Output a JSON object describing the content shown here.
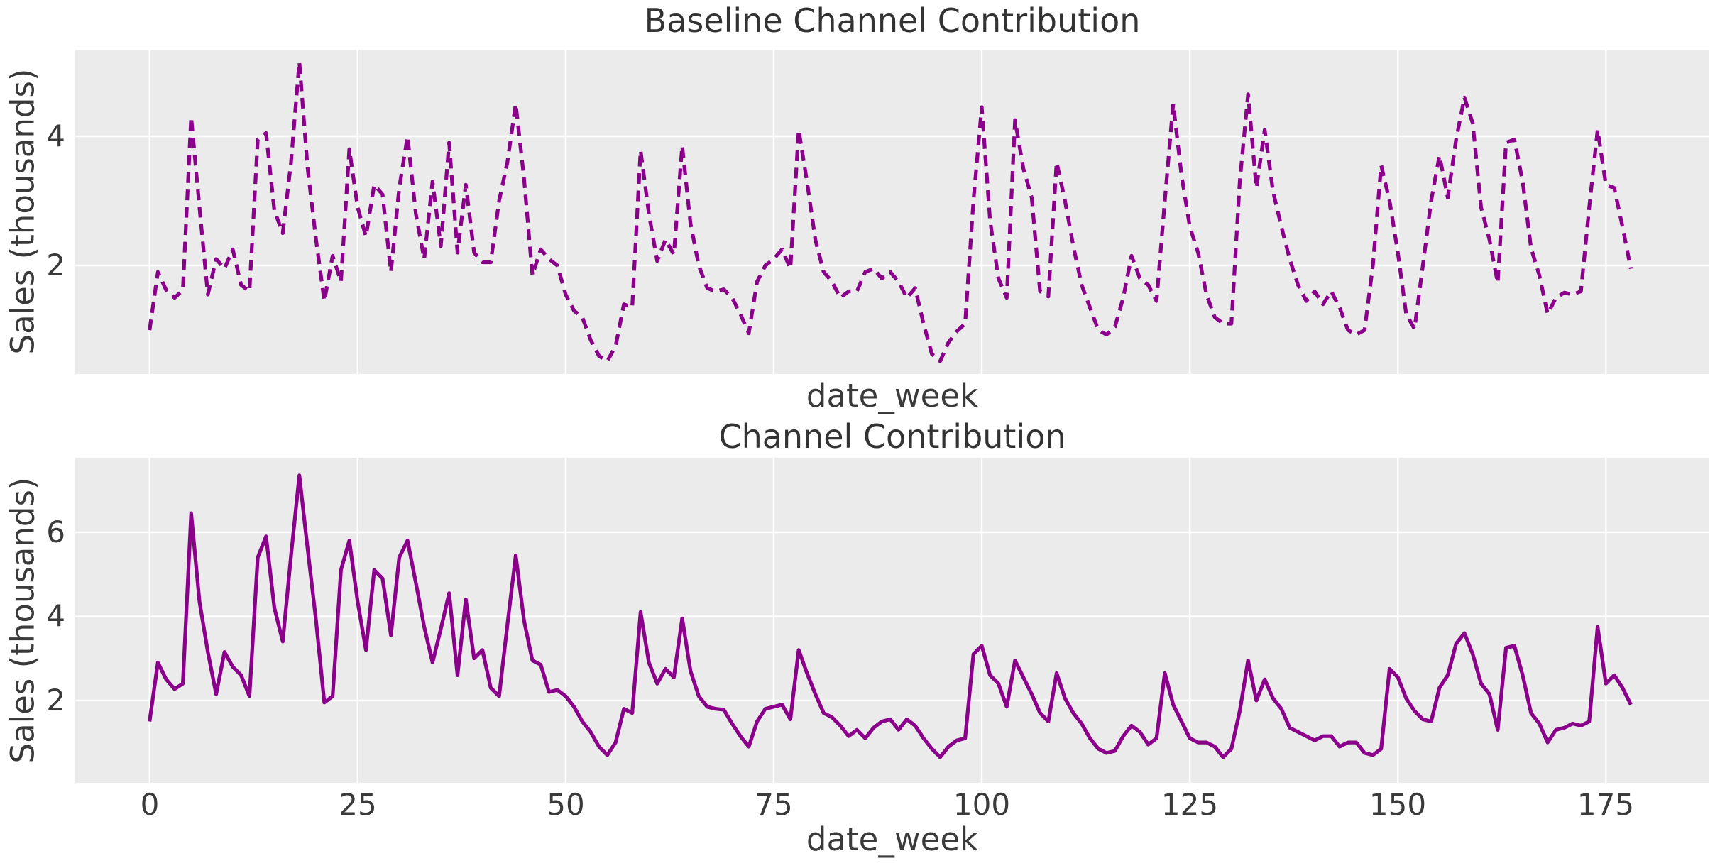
{
  "figure": {
    "background": "#ffffff",
    "text_color": "#3a3a3a",
    "panel_background": "#EBEBEB",
    "grid_color": "#FFFFFF"
  },
  "chart_data": [
    {
      "type": "line",
      "title": "Baseline Channel Contribution",
      "xlabel": "date_week",
      "ylabel": "Sales (thousands)",
      "line_color": "#8B008B",
      "line_style": "dashed",
      "legend": "none",
      "grid": "on",
      "x_ticks": [
        0,
        25,
        50,
        75,
        100,
        125,
        150,
        175
      ],
      "y_ticks": [
        2,
        4
      ],
      "show_x_tick_labels": false,
      "xlim": [
        -8.93,
        187.43
      ],
      "ylim": [
        0.32,
        5.34
      ],
      "x_unit": "week_index",
      "values": [
        1.0,
        1.9,
        1.62,
        1.5,
        1.62,
        4.3,
        2.9,
        1.55,
        2.1,
        1.95,
        2.25,
        1.7,
        1.6,
        3.95,
        4.05,
        2.85,
        2.5,
        3.6,
        5.15,
        3.5,
        2.4,
        1.45,
        2.15,
        1.75,
        3.8,
        2.9,
        2.45,
        3.25,
        3.1,
        1.9,
        3.2,
        4.0,
        2.8,
        2.1,
        3.3,
        2.3,
        3.9,
        2.2,
        3.25,
        2.2,
        2.05,
        2.05,
        3.0,
        3.6,
        4.5,
        3.35,
        1.85,
        2.25,
        2.1,
        2.0,
        1.55,
        1.3,
        1.2,
        0.85,
        0.6,
        0.52,
        0.75,
        1.4,
        1.35,
        3.78,
        2.8,
        2.07,
        2.4,
        2.17,
        3.85,
        2.65,
        2.0,
        1.65,
        1.6,
        1.63,
        1.5,
        1.25,
        0.95,
        1.75,
        2.0,
        2.1,
        2.25,
        1.95,
        4.1,
        3.3,
        2.4,
        1.9,
        1.75,
        1.5,
        1.6,
        1.6,
        1.9,
        1.95,
        1.8,
        1.9,
        1.75,
        1.5,
        1.65,
        1.1,
        0.63,
        0.52,
        0.81,
        0.98,
        1.1,
        3.0,
        4.45,
        2.7,
        1.8,
        1.5,
        4.25,
        3.5,
        3.05,
        1.6,
        1.52,
        3.6,
        3.0,
        2.3,
        1.7,
        1.35,
        1.0,
        0.93,
        1.05,
        1.5,
        2.15,
        1.8,
        1.7,
        1.45,
        3.0,
        4.5,
        3.4,
        2.6,
        2.2,
        1.55,
        1.2,
        1.1,
        1.1,
        3.3,
        4.65,
        3.2,
        4.1,
        3.15,
        2.6,
        2.1,
        1.7,
        1.45,
        1.6,
        1.4,
        1.6,
        1.35,
        1.0,
        0.93,
        1.0,
        2.0,
        3.55,
        3.0,
        2.2,
        1.25,
        1.02,
        2.0,
        3.0,
        3.7,
        3.05,
        3.95,
        4.6,
        4.2,
        2.9,
        2.4,
        1.73,
        3.9,
        3.95,
        3.3,
        2.27,
        1.85,
        1.25,
        1.5,
        1.58,
        1.55,
        1.6,
        2.9,
        4.1,
        3.25,
        3.2,
        2.6,
        1.95
      ]
    },
    {
      "type": "line",
      "title": "Channel Contribution",
      "xlabel": "date_week",
      "ylabel": "Sales (thousands)",
      "line_color": "#8B008B",
      "line_style": "solid",
      "legend": "none",
      "grid": "on",
      "x_ticks": [
        0,
        25,
        50,
        75,
        100,
        125,
        150,
        175
      ],
      "y_ticks": [
        2,
        4,
        6
      ],
      "show_x_tick_labels": true,
      "xlim": [
        -8.93,
        187.43
      ],
      "ylim": [
        0.04,
        7.77
      ],
      "x_unit": "week_index",
      "values": [
        1.5,
        2.9,
        2.5,
        2.27,
        2.4,
        6.45,
        4.35,
        3.15,
        2.15,
        3.15,
        2.8,
        2.6,
        2.1,
        5.4,
        5.9,
        4.2,
        3.4,
        5.45,
        7.35,
        5.6,
        3.9,
        1.95,
        2.1,
        5.1,
        5.8,
        4.35,
        3.2,
        5.1,
        4.9,
        3.55,
        5.4,
        5.8,
        4.8,
        3.75,
        2.9,
        3.7,
        4.55,
        2.6,
        4.4,
        3.0,
        3.2,
        2.3,
        2.1,
        3.8,
        5.45,
        3.9,
        2.95,
        2.85,
        2.2,
        2.25,
        2.1,
        1.85,
        1.5,
        1.25,
        0.9,
        0.7,
        1.0,
        1.8,
        1.7,
        4.1,
        2.9,
        2.4,
        2.75,
        2.55,
        3.95,
        2.7,
        2.1,
        1.85,
        1.8,
        1.78,
        1.45,
        1.15,
        0.9,
        1.5,
        1.8,
        1.85,
        1.9,
        1.55,
        3.2,
        2.65,
        2.15,
        1.7,
        1.6,
        1.4,
        1.15,
        1.3,
        1.1,
        1.35,
        1.5,
        1.55,
        1.3,
        1.55,
        1.4,
        1.1,
        0.85,
        0.65,
        0.9,
        1.05,
        1.1,
        3.1,
        3.3,
        2.6,
        2.4,
        1.85,
        2.95,
        2.55,
        2.15,
        1.7,
        1.5,
        2.65,
        2.05,
        1.7,
        1.45,
        1.1,
        0.85,
        0.75,
        0.8,
        1.15,
        1.4,
        1.25,
        0.95,
        1.1,
        2.65,
        1.9,
        1.5,
        1.1,
        1.0,
        1.0,
        0.9,
        0.65,
        0.85,
        1.75,
        2.95,
        2.0,
        2.5,
        2.05,
        1.8,
        1.35,
        1.25,
        1.15,
        1.05,
        1.15,
        1.15,
        0.9,
        1.0,
        1.0,
        0.75,
        0.7,
        0.85,
        2.75,
        2.55,
        2.05,
        1.75,
        1.55,
        1.5,
        2.3,
        2.6,
        3.35,
        3.6,
        3.1,
        2.4,
        2.15,
        1.3,
        3.25,
        3.3,
        2.6,
        1.7,
        1.45,
        1.0,
        1.3,
        1.35,
        1.45,
        1.4,
        1.5,
        3.75,
        2.4,
        2.6,
        2.3,
        1.9
      ]
    }
  ]
}
